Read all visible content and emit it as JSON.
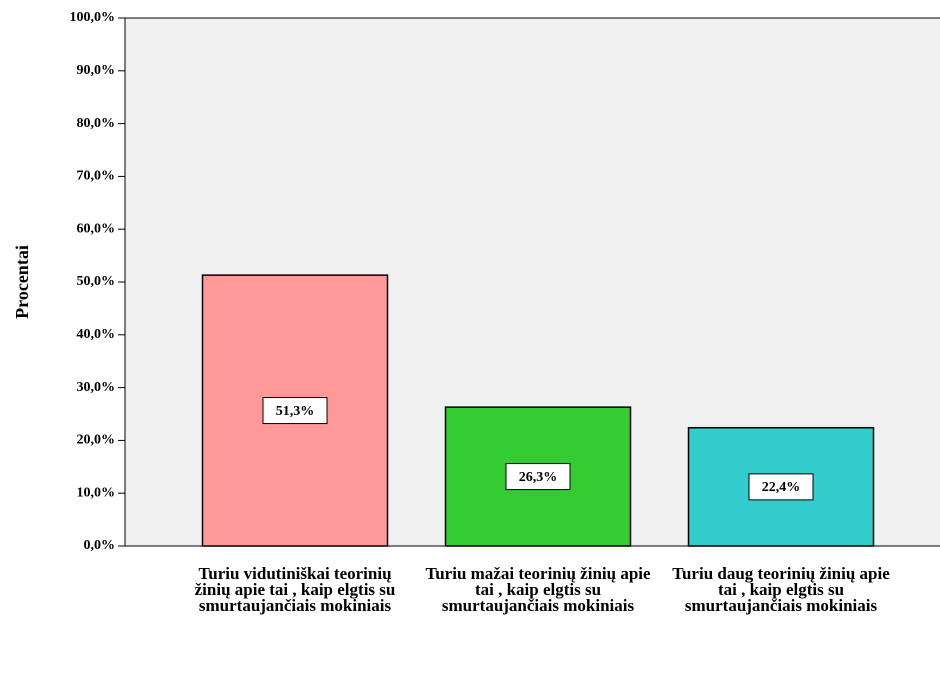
{
  "chart_data": {
    "type": "bar",
    "y_label": "Procentai",
    "categories": [
      "Turiu vidutiniškai teorinių žinių apie tai , kaip elgtis su smurtaujančiais mokiniais",
      "Turiu mažai teorinių žinių apie tai , kaip elgtis su smurtaujančiais mokiniais",
      "Turiu daug teorinių žinių apie tai , kaip elgtis su smurtaujančiais mokiniais"
    ],
    "values": [
      51.3,
      26.3,
      22.4
    ],
    "value_labels": [
      "51,3%",
      "26,3%",
      "22,4%"
    ],
    "colors": [
      "#ff9999",
      "#33cc33",
      "#33cccc"
    ],
    "ylim": [
      0,
      100
    ],
    "yticks": [
      {
        "value": 0,
        "label": "0,0%"
      },
      {
        "value": 10,
        "label": "10,0%"
      },
      {
        "value": 20,
        "label": "20,0%"
      },
      {
        "value": 30,
        "label": "30,0%"
      },
      {
        "value": 40,
        "label": "40,0%"
      },
      {
        "value": 50,
        "label": "50,0%"
      },
      {
        "value": 60,
        "label": "60,0%"
      },
      {
        "value": 70,
        "label": "70,0%"
      },
      {
        "value": 80,
        "label": "80,0%"
      },
      {
        "value": 90,
        "label": "90,0%"
      },
      {
        "value": 100,
        "label": "100,0%"
      }
    ]
  }
}
